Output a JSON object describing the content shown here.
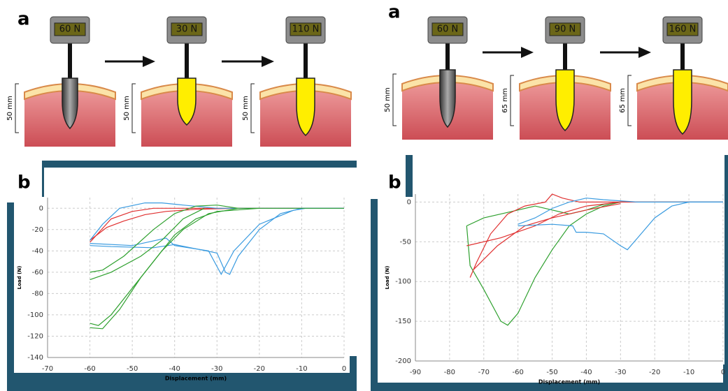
{
  "panels": [
    {
      "label_a": "a",
      "label_b": "b",
      "probes": [
        {
          "force": "60 N",
          "depth": "50 mm"
        },
        {
          "force": "30 N",
          "depth": "50 mm"
        },
        {
          "force": "110 N",
          "depth": "50 mm"
        }
      ]
    },
    {
      "label_a": "a",
      "label_b": "b",
      "probes": [
        {
          "force": "60 N",
          "depth": "50 mm"
        },
        {
          "force": "90 N",
          "depth": "65 mm"
        },
        {
          "force": "160 N",
          "depth": "65 mm"
        }
      ]
    }
  ],
  "chart_data": [
    {
      "type": "line",
      "x_label": "Displacement (mm)",
      "y_label": "Load (N)",
      "xlim": [
        -70,
        0
      ],
      "ylim": [
        -140,
        10
      ],
      "xticks": [
        -70,
        -60,
        -50,
        -40,
        -30,
        -20,
        -10,
        0
      ],
      "yticks": [
        -140,
        -120,
        -100,
        -80,
        -60,
        -40,
        -20,
        0
      ],
      "grid": true,
      "series": [
        {
          "color": "#e03030",
          "x": [
            -60,
            -55,
            -50,
            -45,
            -40,
            -30,
            0
          ],
          "values": [
            -32,
            -10,
            -3,
            0,
            0,
            0,
            0
          ]
        },
        {
          "color": "#e03030",
          "x": [
            -60,
            -56,
            -52,
            -47,
            -42,
            -35,
            -25,
            0
          ],
          "values": [
            -30,
            -18,
            -12,
            -6,
            -3,
            -1,
            0,
            0
          ]
        },
        {
          "color": "#3a9be0",
          "x": [
            -60,
            -57,
            -53,
            -47,
            -43,
            -38,
            -30,
            -20,
            0
          ],
          "values": [
            -30,
            -15,
            0,
            5,
            5,
            3,
            0,
            0,
            0
          ]
        },
        {
          "color": "#3a9be0",
          "x": [
            -60,
            -55,
            -45,
            -40,
            -35,
            -30,
            -28,
            -27,
            -25,
            -20,
            -15,
            -10,
            0
          ],
          "values": [
            -35,
            -36,
            -37,
            -34,
            -38,
            -42,
            -60,
            -62,
            -45,
            -20,
            -5,
            0,
            0
          ]
        },
        {
          "color": "#3a9be0",
          "x": [
            -60,
            -50,
            -42,
            -40,
            -32,
            -29,
            -26,
            -20,
            -12,
            -9
          ],
          "values": [
            -33,
            -35,
            -28,
            -35,
            -40,
            -62,
            -40,
            -15,
            -2,
            0
          ]
        },
        {
          "color": "#2ea02e",
          "x": [
            -60,
            -57,
            -52,
            -45,
            -40,
            -35,
            -30,
            -25,
            0
          ],
          "values": [
            -60,
            -58,
            -45,
            -20,
            -5,
            2,
            3,
            0,
            0
          ]
        },
        {
          "color": "#2ea02e",
          "x": [
            -60,
            -58,
            -55,
            -50,
            -45,
            -40,
            -35,
            -30,
            -20
          ],
          "values": [
            -108,
            -110,
            -100,
            -75,
            -50,
            -25,
            -10,
            -3,
            0
          ]
        },
        {
          "color": "#2ea02e",
          "x": [
            -60,
            -55,
            -48,
            -43,
            -38,
            -33
          ],
          "values": [
            -67,
            -60,
            -45,
            -30,
            -10,
            0
          ]
        },
        {
          "color": "#2ea02e",
          "x": [
            -60,
            -57,
            -53,
            -48,
            -43,
            -38,
            -32,
            -25
          ],
          "values": [
            -112,
            -113,
            -95,
            -65,
            -40,
            -20,
            -5,
            0
          ]
        }
      ]
    },
    {
      "type": "line",
      "x_label": "Displacement (mm)",
      "y_label": "Load (N)",
      "xlim": [
        -90,
        0
      ],
      "ylim": [
        -200,
        10
      ],
      "xticks": [
        -90,
        -80,
        -70,
        -60,
        -50,
        -40,
        -30,
        -20,
        -10,
        0
      ],
      "yticks": [
        -200,
        -150,
        -100,
        -50,
        0
      ],
      "grid": true,
      "series": [
        {
          "color": "#2ea02e",
          "x": [
            -75,
            -70,
            -60,
            -55,
            -45,
            -40,
            -35,
            -30,
            0
          ],
          "values": [
            -30,
            -20,
            -10,
            -5,
            -15,
            -10,
            -3,
            0,
            0
          ]
        },
        {
          "color": "#2ea02e",
          "x": [
            -75,
            -74,
            -70,
            -65,
            -63,
            -60,
            -55,
            -50,
            -45,
            -40,
            -35,
            -30
          ],
          "values": [
            -30,
            -80,
            -110,
            -150,
            -155,
            -140,
            -95,
            -60,
            -30,
            -15,
            -5,
            0
          ]
        },
        {
          "color": "#e03030",
          "x": [
            -74,
            -72,
            -68,
            -63,
            -58,
            -52,
            -50,
            -47,
            -42,
            -35,
            -20,
            0
          ],
          "values": [
            -95,
            -75,
            -40,
            -15,
            -5,
            0,
            10,
            5,
            0,
            0,
            0,
            0
          ]
        },
        {
          "color": "#e03030",
          "x": [
            -75,
            -65,
            -55,
            -48,
            -40,
            -30,
            0
          ],
          "values": [
            -55,
            -45,
            -30,
            -15,
            -5,
            0,
            0
          ]
        },
        {
          "color": "#e03030",
          "x": [
            -73,
            -66,
            -58,
            -50,
            -40,
            -30
          ],
          "values": [
            -85,
            -55,
            -30,
            -20,
            -10,
            -2
          ]
        },
        {
          "color": "#3a9be0",
          "x": [
            -60,
            -50,
            -44,
            -43,
            -40,
            -35,
            -30,
            -28,
            -25,
            -20,
            -15,
            -10,
            0
          ],
          "values": [
            -30,
            -28,
            -30,
            -38,
            -38,
            -40,
            -55,
            -60,
            -45,
            -20,
            -5,
            0,
            0
          ]
        },
        {
          "color": "#3a9be0",
          "x": [
            -60,
            -55,
            -50,
            -45,
            -40,
            -35,
            -25,
            -10,
            0
          ],
          "values": [
            -28,
            -20,
            -8,
            0,
            5,
            3,
            0,
            0,
            0
          ]
        }
      ]
    }
  ]
}
